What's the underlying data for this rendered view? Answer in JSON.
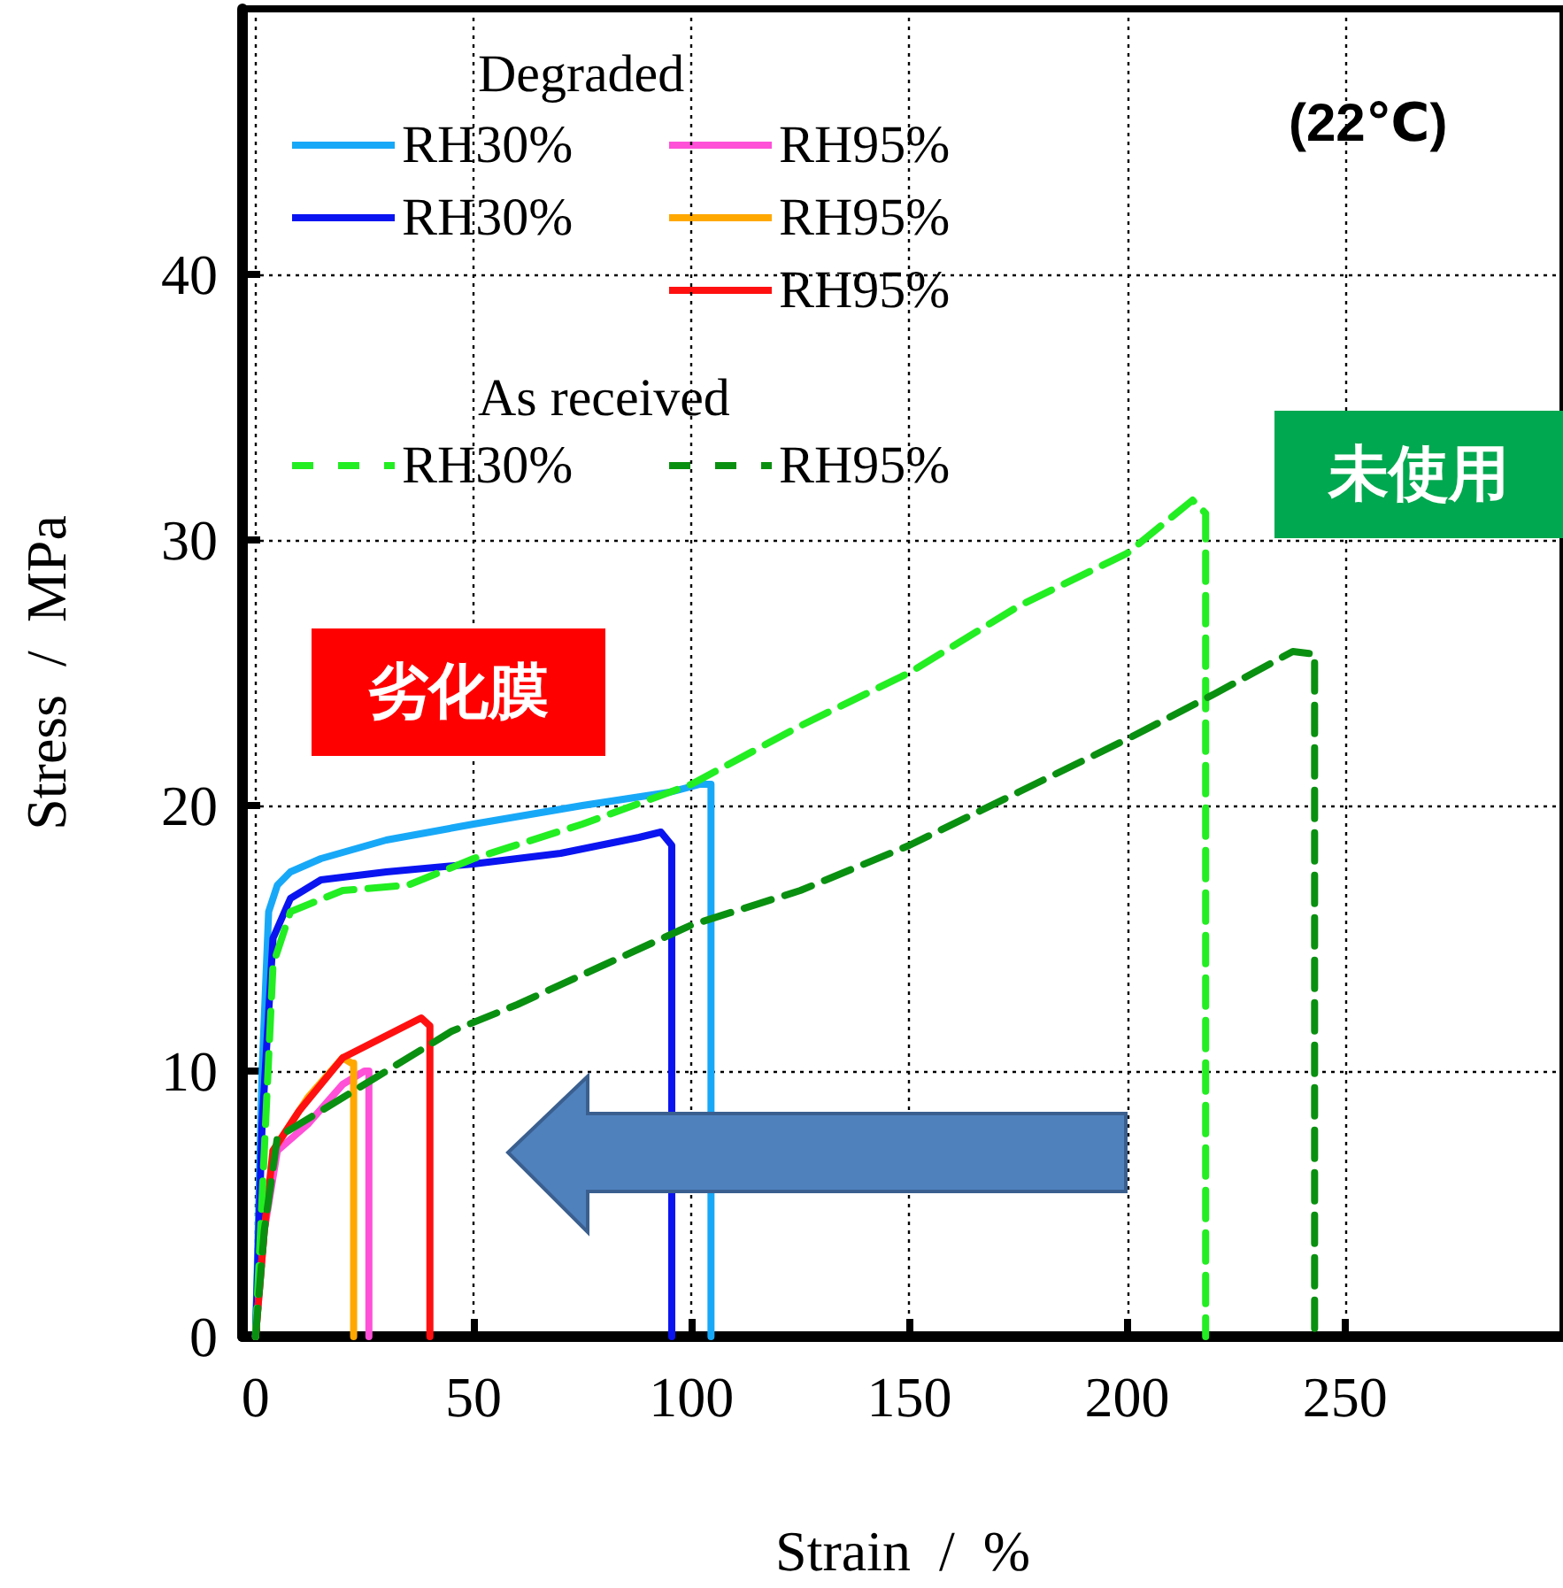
{
  "chart_data": {
    "type": "line",
    "xlabel": "Strain  /  %",
    "ylabel": "Stress  /  MPa",
    "xlim": [
      -3,
      300
    ],
    "ylim": [
      0,
      50
    ],
    "xticks": [
      0,
      50,
      100,
      150,
      200,
      250
    ],
    "yticks": [
      0,
      10,
      20,
      30,
      40
    ],
    "grid": true,
    "legend": "top left",
    "marker": "none",
    "annotations": [
      "Degraded",
      "As received",
      "(22℃)",
      "劣化膜",
      "未使用"
    ],
    "series": [
      {
        "name": "RH30%",
        "color": "#18a8f8",
        "line_style": "solid",
        "x": [
          0,
          1.5,
          3,
          5,
          8,
          15,
          30,
          50,
          75,
          95,
          102,
          104.5,
          104.5,
          104.5
        ],
        "values": [
          0,
          10,
          16,
          17,
          17.5,
          18,
          18.7,
          19.3,
          20,
          20.5,
          20.8,
          20.8,
          10,
          0
        ]
      },
      {
        "name": "RH30%",
        "color": "#0a14f0",
        "line_style": "solid",
        "x": [
          0,
          1.5,
          4,
          8,
          15,
          30,
          50,
          70,
          88,
          93,
          95.5,
          95.5
        ],
        "values": [
          0,
          8,
          15,
          16.5,
          17.2,
          17.5,
          17.8,
          18.2,
          18.8,
          19,
          18.5,
          0
        ]
      },
      {
        "name": "RH95%",
        "color": "#ff50d8",
        "line_style": "solid",
        "x": [
          0,
          2,
          5,
          12,
          20,
          25,
          26,
          26
        ],
        "values": [
          0,
          4,
          7,
          8,
          9.5,
          10,
          10,
          0
        ]
      },
      {
        "name": "RH95%",
        "color": "#ffa800",
        "line_style": "solid",
        "x": [
          4,
          12,
          20,
          22,
          22.5,
          22.5
        ],
        "values": [
          7,
          9,
          10.5,
          10.3,
          10.3,
          0
        ]
      },
      {
        "name": "RH95%",
        "color": "#ff1010",
        "line_style": "solid",
        "x": [
          0,
          2,
          4,
          10,
          20,
          32,
          38,
          40,
          40
        ],
        "values": [
          0,
          4,
          7,
          8.5,
          10.5,
          11.5,
          12,
          11.7,
          0
        ]
      },
      {
        "name": "RH30%",
        "color": "#22ee22",
        "line_style": "dashed",
        "x": [
          0,
          2,
          4,
          8,
          20,
          35,
          50,
          75,
          100,
          125,
          150,
          175,
          200,
          215,
          218,
          218
        ],
        "values": [
          0,
          7,
          14,
          16,
          16.8,
          17,
          18,
          19.3,
          20.8,
          23,
          25,
          27.5,
          29.5,
          31.5,
          31,
          0
        ]
      },
      {
        "name": "RH95%",
        "color": "#0a9010",
        "line_style": "dashed",
        "x": [
          0,
          2,
          5,
          15,
          30,
          45,
          60,
          80,
          100,
          125,
          150,
          175,
          200,
          220,
          238,
          243,
          243
        ],
        "values": [
          0,
          4,
          7.5,
          8.5,
          10,
          11.5,
          12.5,
          14,
          15.5,
          16.8,
          18.5,
          20.5,
          22.5,
          24.2,
          25.8,
          25.7,
          0
        ]
      }
    ]
  }
}
